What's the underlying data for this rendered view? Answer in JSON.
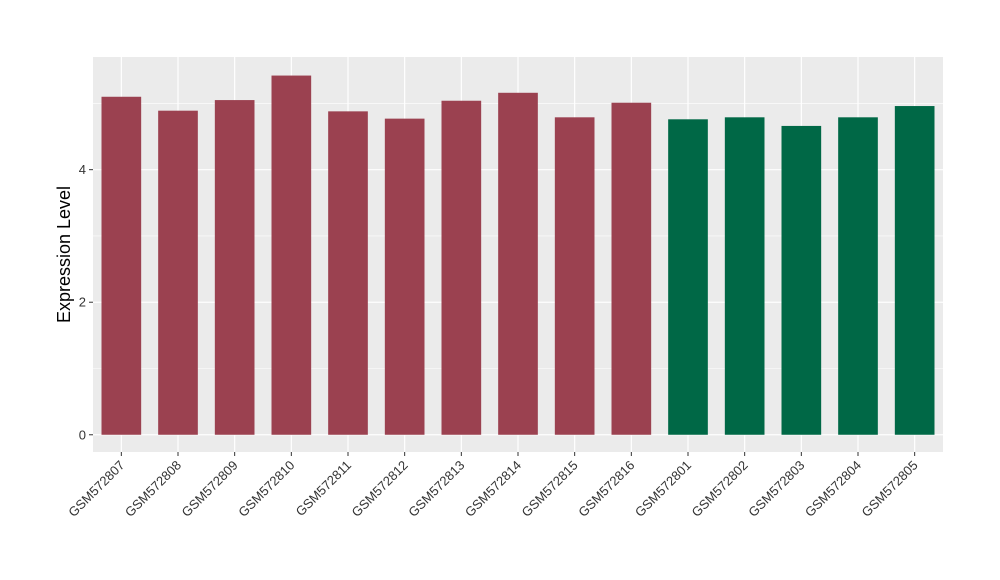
{
  "chart_data": {
    "type": "bar",
    "title": "",
    "xlabel": "",
    "ylabel": "Expression Level",
    "ylim": [
      -0.26,
      5.7
    ],
    "yticks": [
      0,
      2,
      4
    ],
    "grid": true,
    "background": "#EBEBEB",
    "categories": [
      "GSM572807",
      "GSM572808",
      "GSM572809",
      "GSM572810",
      "GSM572811",
      "GSM572812",
      "GSM572813",
      "GSM572814",
      "GSM572815",
      "GSM572816",
      "GSM572801",
      "GSM572802",
      "GSM572803",
      "GSM572804",
      "GSM572805"
    ],
    "values": [
      5.1,
      4.89,
      5.05,
      5.42,
      4.88,
      4.77,
      5.04,
      5.16,
      4.79,
      5.01,
      4.76,
      4.79,
      4.66,
      4.79,
      4.96
    ],
    "colors": [
      "#9B4150",
      "#9B4150",
      "#9B4150",
      "#9B4150",
      "#9B4150",
      "#9B4150",
      "#9B4150",
      "#9B4150",
      "#9B4150",
      "#9B4150",
      "#006846",
      "#006846",
      "#006846",
      "#006846",
      "#006846"
    ]
  }
}
